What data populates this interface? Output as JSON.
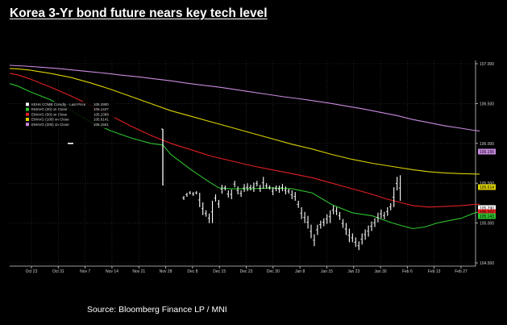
{
  "title": "Korea 3-Yr bond future nears key tech level",
  "source": "Source: Bloomberg Finance LP / MNI",
  "chart_data": {
    "type": "line",
    "y_ticks": [
      "107.000",
      "106.500",
      "106.000",
      "105.500",
      "105.000",
      "104.500"
    ],
    "y_tick_values": [
      107.0,
      106.5,
      106.0,
      105.5,
      105.0,
      104.5
    ],
    "x_ticks": [
      "Oct 23",
      "Oct 31",
      "Nov 7",
      "Nov 14",
      "Nov 21",
      "Nov 28",
      "Dec 8",
      "Dec 15",
      "Dec 23",
      "Dec 30",
      "Jan 8",
      "Jan 15",
      "Jan 23",
      "Jan 30",
      "Feb 6",
      "Feb 13",
      "Feb 27"
    ],
    "ylim": [
      104.45,
      107.05
    ],
    "grid": true,
    "legend": [
      {
        "label": "KEH6 COMB Comdty - Last Price",
        "value": "105.2900",
        "color": "#ffffff"
      },
      {
        "label": "EMAVG (20)  on Close",
        "value": "105.1427",
        "color": "#2ec12e"
      },
      {
        "label": "EMAVG (50)  on Close",
        "value": "105.2368",
        "color": "#e02020"
      },
      {
        "label": "EMAVG (100)  on Close",
        "value": "105.6141",
        "color": "#dcd200"
      },
      {
        "label": "EMAVG (200)  on Close",
        "value": "106.1561",
        "color": "#c98ae0"
      }
    ],
    "last_value_tags": [
      {
        "text": "106.156",
        "color": "#c98ae0",
        "value": 106.156
      },
      {
        "text": "105.614",
        "color": "#dcd200",
        "value": 105.614
      },
      {
        "text": "105.290",
        "color": "#ffffff",
        "value": 105.29
      },
      {
        "text": "105.237",
        "color": "#e02020",
        "value": 105.237
      },
      {
        "text": "105.143",
        "color": "#2ec12e",
        "value": 105.143
      }
    ],
    "series": [
      {
        "key": "ema200",
        "color": "#c98ae0",
        "x": [
          0,
          10,
          20,
          40,
          60,
          80,
          100,
          120,
          140,
          160,
          180,
          200,
          220,
          240,
          260,
          280,
          300,
          320,
          340,
          360,
          380,
          400,
          420,
          440,
          460,
          480,
          500,
          520,
          540,
          560,
          575,
          583
        ],
        "values": [
          106.98,
          106.975,
          106.97,
          106.955,
          106.94,
          106.92,
          106.9,
          106.88,
          106.855,
          106.835,
          106.81,
          106.785,
          106.755,
          106.73,
          106.705,
          106.675,
          106.645,
          106.615,
          106.585,
          106.56,
          106.53,
          106.5,
          106.465,
          106.43,
          106.39,
          106.35,
          106.3,
          106.26,
          106.22,
          106.19,
          106.165,
          106.156
        ]
      },
      {
        "key": "ema100",
        "color": "#dcd200",
        "x": [
          0,
          10,
          25,
          50,
          75,
          100,
          125,
          150,
          175,
          200,
          225,
          250,
          275,
          300,
          325,
          350,
          375,
          400,
          425,
          450,
          475,
          500,
          520,
          540,
          560,
          575,
          583
        ],
        "values": [
          106.94,
          106.935,
          106.92,
          106.88,
          106.83,
          106.76,
          106.68,
          106.59,
          106.5,
          106.41,
          106.34,
          106.27,
          106.2,
          106.13,
          106.06,
          105.99,
          105.93,
          105.86,
          105.8,
          105.75,
          105.71,
          105.67,
          105.645,
          105.63,
          105.62,
          105.616,
          105.614
        ]
      },
      {
        "key": "ema50",
        "color": "#e02020",
        "x": [
          0,
          10,
          25,
          50,
          75,
          100,
          125,
          150,
          175,
          200,
          225,
          250,
          275,
          300,
          325,
          350,
          375,
          400,
          425,
          450,
          465,
          480,
          500,
          520,
          540,
          560,
          575,
          583
        ],
        "values": [
          106.88,
          106.86,
          106.81,
          106.71,
          106.6,
          106.48,
          106.35,
          106.22,
          106.1,
          106.0,
          105.92,
          105.84,
          105.78,
          105.72,
          105.67,
          105.62,
          105.57,
          105.5,
          105.43,
          105.36,
          105.31,
          105.27,
          105.22,
          105.2,
          105.21,
          105.22,
          105.232,
          105.237
        ]
      },
      {
        "key": "ema20",
        "color": "#2ec12e",
        "x": [
          0,
          10,
          25,
          50,
          75,
          100,
          125,
          150,
          175,
          190,
          200,
          225,
          250,
          260,
          275,
          300,
          325,
          350,
          375,
          400,
          425,
          450,
          475,
          500,
          515,
          530,
          545,
          560,
          575,
          583
        ],
        "values": [
          106.75,
          106.72,
          106.65,
          106.55,
          106.42,
          106.27,
          106.16,
          106.07,
          106.0,
          105.98,
          105.86,
          105.67,
          105.5,
          105.44,
          105.43,
          105.43,
          105.44,
          105.43,
          105.38,
          105.23,
          105.13,
          105.09,
          105.0,
          104.93,
          104.95,
          105.0,
          105.03,
          105.06,
          105.12,
          105.143
        ]
      },
      {
        "key": "price_left",
        "color": "#ffffff",
        "x": [
          72,
          79
        ],
        "values": [
          106.0,
          106.0
        ]
      }
    ],
    "spike": {
      "x": 190,
      "low": 105.47,
      "high": 106.18
    },
    "bars_start_x": 228,
    "bars_step_x": 3.95,
    "bars": [
      [
        105.29,
        105.34
      ],
      [
        105.33,
        105.38
      ],
      [
        105.36,
        105.4
      ],
      [
        105.34,
        105.39
      ],
      [
        105.36,
        105.4
      ],
      [
        105.2,
        105.38
      ],
      [
        105.1,
        105.26
      ],
      [
        105.08,
        105.16
      ],
      [
        105.0,
        105.12
      ],
      [
        105.0,
        105.28
      ],
      [
        105.27,
        105.36
      ],
      [
        105.19,
        105.29
      ],
      [
        105.37,
        105.48
      ],
      [
        105.41,
        105.47
      ],
      [
        105.32,
        105.41
      ],
      [
        105.3,
        105.42
      ],
      [
        105.45,
        105.53
      ],
      [
        105.36,
        105.46
      ],
      [
        105.33,
        105.41
      ],
      [
        105.39,
        105.49
      ],
      [
        105.4,
        105.5
      ],
      [
        105.41,
        105.48
      ],
      [
        105.39,
        105.51
      ],
      [
        105.46,
        105.53
      ],
      [
        105.39,
        105.48
      ],
      [
        105.43,
        105.58
      ],
      [
        105.43,
        105.5
      ],
      [
        105.42,
        105.47
      ],
      [
        105.35,
        105.45
      ],
      [
        105.4,
        105.47
      ],
      [
        105.38,
        105.47
      ],
      [
        105.4,
        105.49
      ],
      [
        105.36,
        105.46
      ],
      [
        105.37,
        105.43
      ],
      [
        105.3,
        105.41
      ],
      [
        105.28,
        105.39
      ],
      [
        105.19,
        105.28
      ],
      [
        105.05,
        105.2
      ],
      [
        105.0,
        105.14
      ],
      [
        104.93,
        105.09
      ],
      [
        104.81,
        104.98
      ],
      [
        104.71,
        104.86
      ],
      [
        104.85,
        104.98
      ],
      [
        104.93,
        105.03
      ],
      [
        104.96,
        105.06
      ],
      [
        104.99,
        105.11
      ],
      [
        105.0,
        105.16
      ],
      [
        105.11,
        105.22
      ],
      [
        105.1,
        105.2
      ],
      [
        105.04,
        105.14
      ],
      [
        104.94,
        105.05
      ],
      [
        104.85,
        105.0
      ],
      [
        104.76,
        104.93
      ],
      [
        104.76,
        104.87
      ],
      [
        104.7,
        104.82
      ],
      [
        104.66,
        104.77
      ],
      [
        104.73,
        104.87
      ],
      [
        104.79,
        104.92
      ],
      [
        104.83,
        104.97
      ],
      [
        104.9,
        105.02
      ],
      [
        104.95,
        105.06
      ],
      [
        105.01,
        105.13
      ],
      [
        105.06,
        105.17
      ],
      [
        105.05,
        105.14
      ],
      [
        105.09,
        105.2
      ],
      [
        105.16,
        105.25
      ],
      [
        105.2,
        105.45
      ],
      [
        105.41,
        105.58
      ],
      [
        105.28,
        105.6
      ]
    ]
  }
}
